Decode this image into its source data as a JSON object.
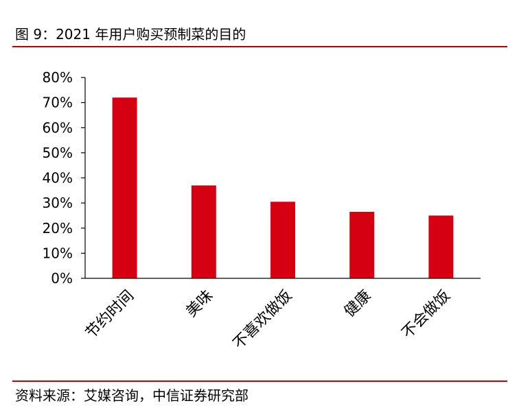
{
  "figure": {
    "title": "图 9：2021 年用户购买预制菜的目的",
    "source": "资料来源：艾媒咨询，中信证券研究部"
  },
  "colors": {
    "bar": "#d50012",
    "rule": "#c00000",
    "axis": "#000000"
  },
  "chart_data": {
    "type": "bar",
    "title": "",
    "xlabel": "",
    "ylabel": "",
    "categories": [
      "节约时间",
      "美味",
      "不喜欢做饭",
      "健康",
      "不会做饭"
    ],
    "values": [
      72,
      37,
      30.5,
      26.5,
      25
    ],
    "ylim": [
      0,
      80
    ],
    "yticks": [
      "0%",
      "10%",
      "20%",
      "30%",
      "40%",
      "50%",
      "60%",
      "70%",
      "80%"
    ],
    "grid": false,
    "legend": "none"
  }
}
